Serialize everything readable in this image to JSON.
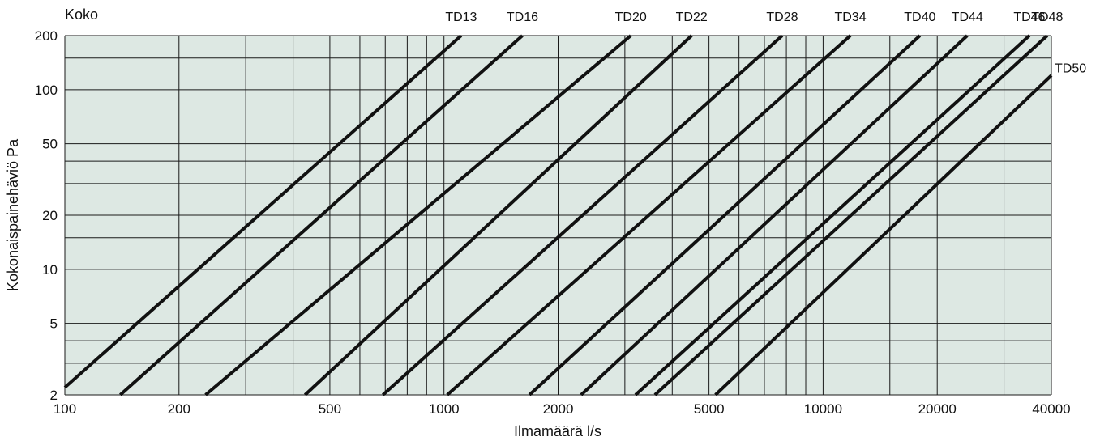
{
  "chart_data": {
    "type": "line",
    "title": "",
    "corner_label": "Koko",
    "xlabel": "Ilmamäärä l/s",
    "ylabel": "Kokonaispainehäviö Pa",
    "x_scale": "log",
    "y_scale": "log",
    "xlim": [
      100,
      40000
    ],
    "ylim": [
      2,
      200
    ],
    "grid": true,
    "background": "#dde8e3",
    "line_color": "#111111",
    "x_ticks": [
      {
        "value": 100,
        "label": "100"
      },
      {
        "value": 200,
        "label": "200"
      },
      {
        "value": 500,
        "label": "500"
      },
      {
        "value": 1000,
        "label": "1000"
      },
      {
        "value": 2000,
        "label": "2000"
      },
      {
        "value": 5000,
        "label": "5000"
      },
      {
        "value": 10000,
        "label": "10000"
      },
      {
        "value": 20000,
        "label": "20000"
      },
      {
        "value": 40000,
        "label": "40000"
      }
    ],
    "y_ticks": [
      {
        "value": 2,
        "label": "2"
      },
      {
        "value": 5,
        "label": "5"
      },
      {
        "value": 10,
        "label": "10"
      },
      {
        "value": 20,
        "label": "20"
      },
      {
        "value": 50,
        "label": "50"
      },
      {
        "value": 100,
        "label": "100"
      },
      {
        "value": 200,
        "label": "200"
      }
    ],
    "x_grid": [
      100,
      200,
      300,
      400,
      500,
      600,
      700,
      800,
      900,
      1000,
      2000,
      3000,
      4000,
      5000,
      6000,
      7000,
      8000,
      9000,
      10000,
      15000,
      20000,
      30000,
      40000
    ],
    "y_grid": [
      2,
      3,
      4,
      5,
      10,
      15,
      20,
      30,
      40,
      50,
      100,
      150,
      200
    ],
    "series": [
      {
        "name": "TD13",
        "points": [
          [
            100,
            2.2
          ],
          [
            1110,
            200
          ]
        ]
      },
      {
        "name": "TD16",
        "points": [
          [
            140,
            2
          ],
          [
            1610,
            200
          ]
        ]
      },
      {
        "name": "TD20",
        "points": [
          [
            235,
            2
          ],
          [
            3110,
            200
          ]
        ]
      },
      {
        "name": "TD22",
        "points": [
          [
            430,
            2
          ],
          [
            4500,
            200
          ]
        ]
      },
      {
        "name": "TD28",
        "points": [
          [
            690,
            2
          ],
          [
            7800,
            200
          ]
        ]
      },
      {
        "name": "TD34",
        "points": [
          [
            1020,
            2
          ],
          [
            11800,
            200
          ]
        ]
      },
      {
        "name": "TD40",
        "points": [
          [
            1680,
            2
          ],
          [
            18000,
            200
          ]
        ]
      },
      {
        "name": "TD44",
        "points": [
          [
            2300,
            2
          ],
          [
            24000,
            200
          ]
        ]
      },
      {
        "name": "TD46",
        "points": [
          [
            3200,
            2
          ],
          [
            35000,
            200
          ]
        ]
      },
      {
        "name": "TD48",
        "points": [
          [
            3600,
            2
          ],
          [
            39000,
            200
          ]
        ]
      },
      {
        "name": "TD50",
        "points": [
          [
            5200,
            2
          ],
          [
            40000,
            120
          ]
        ]
      }
    ]
  }
}
